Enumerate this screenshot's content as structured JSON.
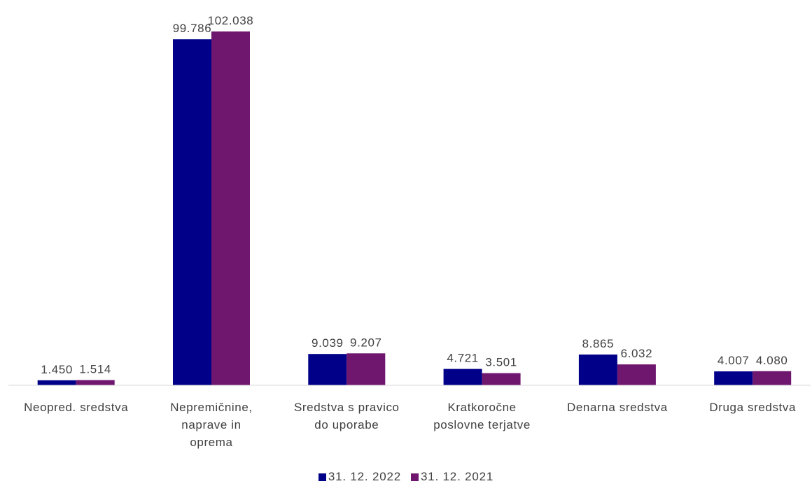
{
  "chart_data": {
    "type": "bar",
    "categories": [
      [
        "Neopred. sredstva"
      ],
      [
        "Nepremičnine,",
        "naprave in",
        "oprema"
      ],
      [
        "Sredstva s pravico",
        "do uporabe"
      ],
      [
        "Kratkoročne",
        "poslovne terjatve"
      ],
      [
        "Denarna sredstva"
      ],
      [
        "Druga sredstva"
      ]
    ],
    "series": [
      {
        "name": "31. 12. 2022",
        "color": "#000089",
        "values": [
          1450,
          99786,
          9039,
          4721,
          8865,
          4007
        ],
        "labels": [
          "1.450",
          "99.786",
          "9.039",
          "4.721",
          "8.865",
          "4.007"
        ]
      },
      {
        "name": "31. 12. 2021",
        "color": "#6f176f",
        "values": [
          1514,
          102038,
          9207,
          3501,
          6032,
          4080
        ],
        "labels": [
          "1.514",
          "102.038",
          "9.207",
          "3.501",
          "6.032",
          "4.080"
        ]
      }
    ],
    "ylim": [
      0,
      102038
    ],
    "axis_color": "#d9d9d9",
    "grid": false,
    "legend_position": "bottom"
  }
}
